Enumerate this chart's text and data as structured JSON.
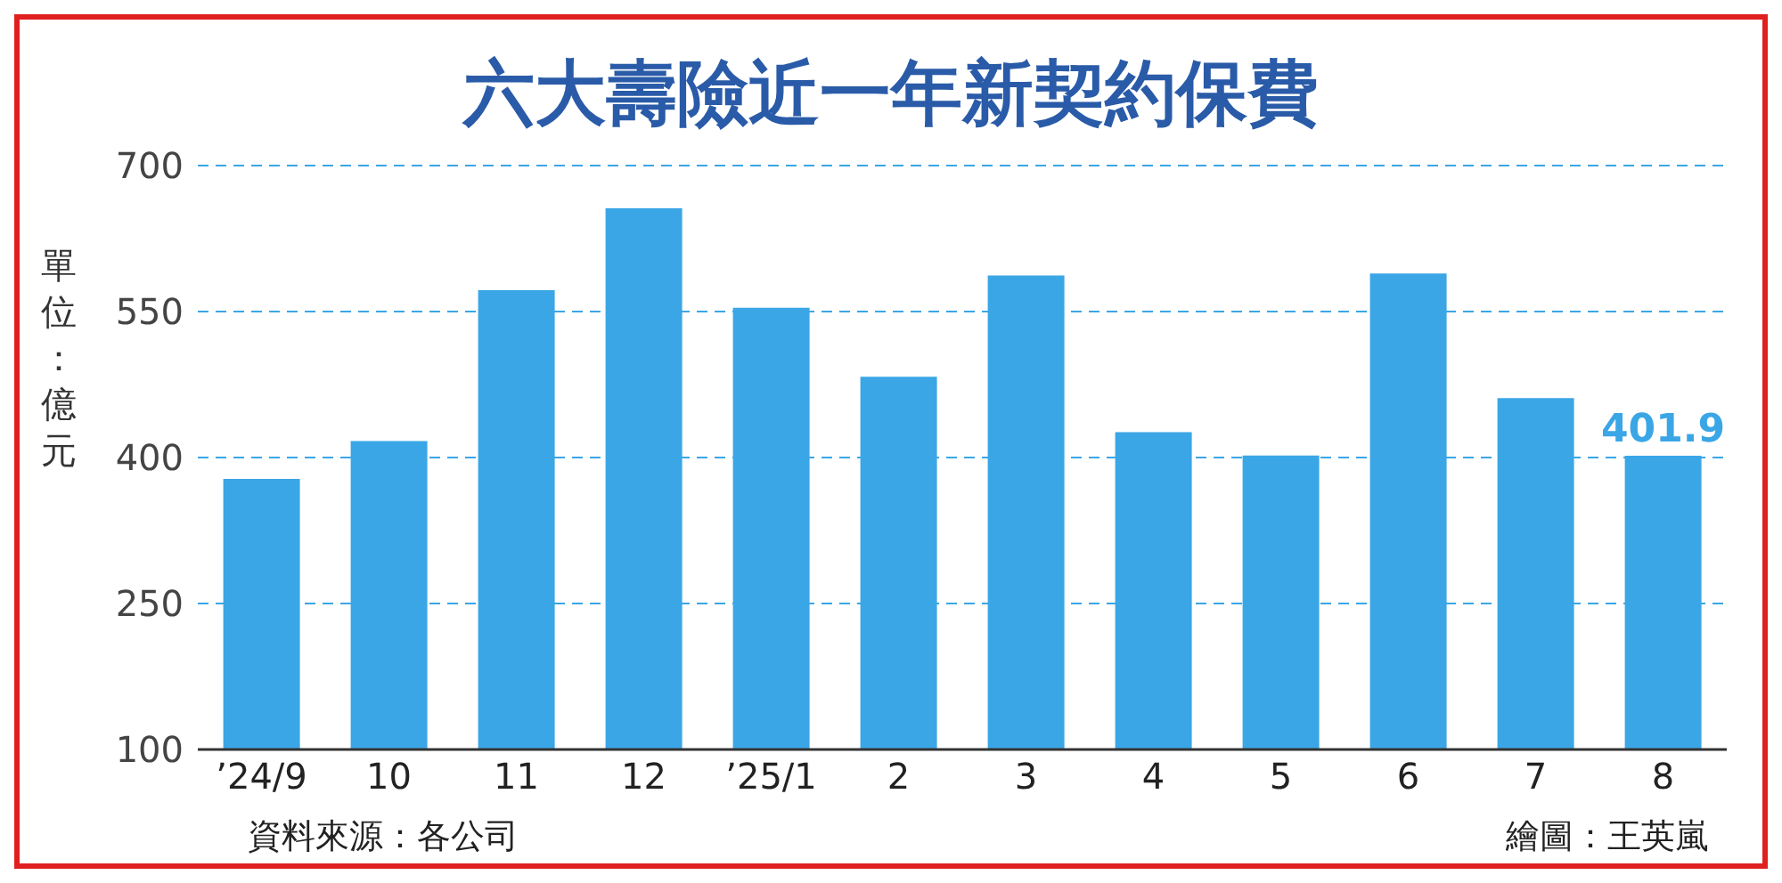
{
  "chart_data": {
    "type": "bar",
    "title": "六大壽險近一年新契約保費",
    "ylabel": "單位：億元",
    "categories": [
      "’24/9",
      "10",
      "11",
      "12",
      "’25/1",
      "2",
      "3",
      "4",
      "5",
      "6",
      "7",
      "8"
    ],
    "values": [
      378,
      417,
      572,
      656,
      554,
      483,
      587,
      426,
      402,
      589,
      461,
      401.9
    ],
    "value_labels": [
      null,
      null,
      null,
      null,
      null,
      null,
      null,
      null,
      null,
      null,
      null,
      "401.9"
    ],
    "color": "#3ba6e6",
    "ylim": [
      100,
      700
    ],
    "yticks": [
      100,
      250,
      400,
      550,
      700
    ],
    "grid": "y",
    "annotations": [
      "資料來源：各公司",
      "繪圖：王英嵐"
    ]
  }
}
